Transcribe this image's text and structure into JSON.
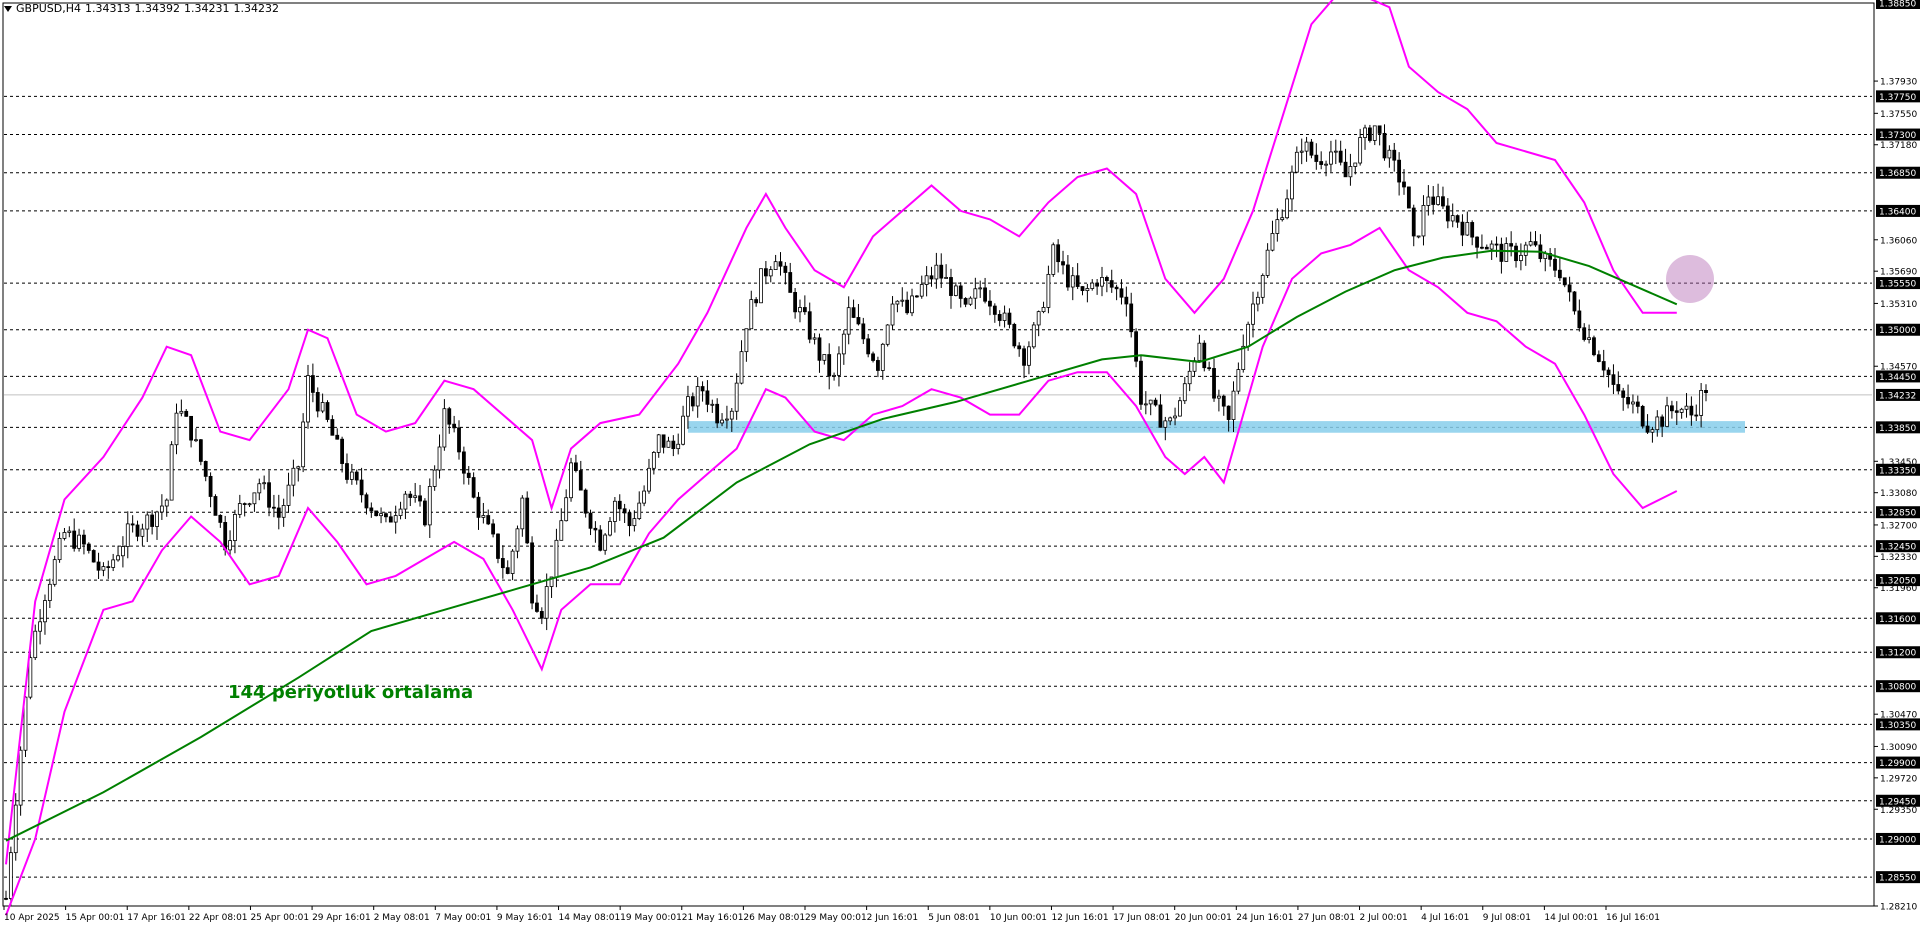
{
  "header": {
    "symbol": "GBPUSD,H4",
    "ohlc": [
      "1.34313",
      "1.34392",
      "1.34231",
      "1.34232"
    ]
  },
  "annotation": "144 periyotluk ortalama",
  "colors": {
    "candles": "#000000",
    "bollinger": "#ff00ff",
    "ma144": "#008000",
    "support_zone": "#87ceeb",
    "highlight_circle": "#b36bb3",
    "grid": "#000000"
  },
  "chart_data": {
    "type": "candlestick",
    "symbol": "GBPUSD",
    "timeframe": "H4",
    "ylim": [
      1.2821,
      1.3885
    ],
    "y_ticks": [
      "1.38850",
      "1.37930",
      "1.37750",
      "1.37550",
      "1.37300",
      "1.37180",
      "1.36850",
      "1.36400",
      "1.36060",
      "1.35690",
      "1.35550",
      "1.35310",
      "1.35000",
      "1.34570",
      "1.34450",
      "1.34232",
      "1.33850",
      "1.33450",
      "1.33350",
      "1.33080",
      "1.32850",
      "1.32700",
      "1.32450",
      "1.32330",
      "1.32050",
      "1.31960",
      "1.31600",
      "1.31200",
      "1.30800",
      "1.30470",
      "1.30350",
      "1.30090",
      "1.29900",
      "1.29720",
      "1.29450",
      "1.29350",
      "1.29000",
      "1.28550",
      "1.28210"
    ],
    "horizontal_levels": [
      1.3885,
      1.3775,
      1.373,
      1.3685,
      1.364,
      1.3555,
      1.35,
      1.3445,
      1.3385,
      1.3335,
      1.3285,
      1.3245,
      1.3205,
      1.316,
      1.312,
      1.308,
      1.3035,
      1.299,
      1.2945,
      1.29,
      1.2855
    ],
    "current_price": 1.34232,
    "support_zone": [
      1.3381,
      1.339
    ],
    "x_labels": [
      "10 Apr 2025",
      "15 Apr 00:01",
      "17 Apr 16:01",
      "22 Apr 08:01",
      "25 Apr 00:01",
      "29 Apr 16:01",
      "2 May 08:01",
      "7 May 00:01",
      "9 May 16:01",
      "14 May 08:01",
      "19 May 00:01",
      "21 May 16:01",
      "26 May 08:01",
      "29 May 00:01",
      "2 Jun 16:01",
      "5 Jun 08:01",
      "10 Jun 00:01",
      "12 Jun 16:01",
      "17 Jun 08:01",
      "20 Jun 00:01",
      "24 Jun 16:01",
      "27 Jun 08:01",
      "2 Jul 00:01",
      "4 Jul 16:01",
      "9 Jul 08:01",
      "14 Jul 00:01",
      "16 Jul 16:01"
    ],
    "price_path": [
      [
        0,
        1.283
      ],
      [
        2,
        1.295
      ],
      [
        5,
        1.312
      ],
      [
        8,
        1.319
      ],
      [
        12,
        1.326
      ],
      [
        16,
        1.3245
      ],
      [
        20,
        1.321
      ],
      [
        25,
        1.326
      ],
      [
        30,
        1.328
      ],
      [
        33,
        1.33
      ],
      [
        35,
        1.341
      ],
      [
        38,
        1.338
      ],
      [
        42,
        1.331
      ],
      [
        45,
        1.325
      ],
      [
        48,
        1.329
      ],
      [
        52,
        1.332
      ],
      [
        56,
        1.328
      ],
      [
        60,
        1.334
      ],
      [
        62,
        1.344
      ],
      [
        66,
        1.339
      ],
      [
        70,
        1.333
      ],
      [
        74,
        1.33
      ],
      [
        78,
        1.327
      ],
      [
        82,
        1.331
      ],
      [
        86,
        1.328
      ],
      [
        90,
        1.34
      ],
      [
        93,
        1.336
      ],
      [
        96,
        1.33
      ],
      [
        100,
        1.325
      ],
      [
        103,
        1.321
      ],
      [
        106,
        1.33
      ],
      [
        108,
        1.319
      ],
      [
        110,
        1.317
      ],
      [
        113,
        1.324
      ],
      [
        116,
        1.334
      ],
      [
        119,
        1.329
      ],
      [
        122,
        1.325
      ],
      [
        125,
        1.33
      ],
      [
        128,
        1.327
      ],
      [
        131,
        1.331
      ],
      [
        134,
        1.337
      ],
      [
        137,
        1.336
      ],
      [
        140,
        1.341
      ],
      [
        143,
        1.343
      ],
      [
        146,
        1.34
      ],
      [
        149,
        1.341
      ],
      [
        152,
        1.351
      ],
      [
        155,
        1.356
      ],
      [
        158,
        1.359
      ],
      [
        161,
        1.354
      ],
      [
        164,
        1.351
      ],
      [
        167,
        1.347
      ],
      [
        170,
        1.344
      ],
      [
        173,
        1.352
      ],
      [
        176,
        1.349
      ],
      [
        179,
        1.346
      ],
      [
        182,
        1.354
      ],
      [
        185,
        1.352
      ],
      [
        188,
        1.355
      ],
      [
        191,
        1.357
      ],
      [
        194,
        1.355
      ],
      [
        197,
        1.352
      ],
      [
        200,
        1.355
      ],
      [
        203,
        1.353
      ],
      [
        206,
        1.35
      ],
      [
        209,
        1.347
      ],
      [
        212,
        1.351
      ],
      [
        215,
        1.359
      ],
      [
        218,
        1.356
      ],
      [
        221,
        1.354
      ],
      [
        224,
        1.356
      ],
      [
        227,
        1.355
      ],
      [
        230,
        1.354
      ],
      [
        233,
        1.342
      ],
      [
        236,
        1.34
      ],
      [
        239,
        1.339
      ],
      [
        242,
        1.343
      ],
      [
        245,
        1.349
      ],
      [
        248,
        1.342
      ],
      [
        251,
        1.339
      ],
      [
        254,
        1.349
      ],
      [
        257,
        1.355
      ],
      [
        260,
        1.361
      ],
      [
        263,
        1.366
      ],
      [
        266,
        1.372
      ],
      [
        269,
        1.37
      ],
      [
        272,
        1.371
      ],
      [
        275,
        1.368
      ],
      [
        278,
        1.372
      ],
      [
        281,
        1.374
      ],
      [
        284,
        1.37
      ],
      [
        287,
        1.367
      ],
      [
        289,
        1.36
      ],
      [
        292,
        1.366
      ],
      [
        295,
        1.364
      ],
      [
        298,
        1.363
      ],
      [
        301,
        1.361
      ],
      [
        304,
        1.36
      ],
      [
        307,
        1.359
      ],
      [
        310,
        1.359
      ],
      [
        313,
        1.36
      ],
      [
        316,
        1.358
      ],
      [
        319,
        1.357
      ],
      [
        322,
        1.352
      ],
      [
        325,
        1.349
      ],
      [
        328,
        1.346
      ],
      [
        331,
        1.342
      ],
      [
        334,
        1.341
      ],
      [
        337,
        1.339
      ],
      [
        340,
        1.3395
      ],
      [
        343,
        1.341
      ],
      [
        346,
        1.34
      ],
      [
        349,
        1.3432
      ]
    ],
    "series": [
      {
        "name": "144 periyotluk ortalama",
        "kind": "moving_average",
        "points": [
          [
            0,
            1.2898
          ],
          [
            20,
            1.2955
          ],
          [
            40,
            1.302
          ],
          [
            60,
            1.309
          ],
          [
            75,
            1.3145
          ],
          [
            90,
            1.317
          ],
          [
            105,
            1.3195
          ],
          [
            120,
            1.322
          ],
          [
            135,
            1.3255
          ],
          [
            150,
            1.332
          ],
          [
            165,
            1.3365
          ],
          [
            180,
            1.3395
          ],
          [
            195,
            1.3415
          ],
          [
            210,
            1.344
          ],
          [
            225,
            1.3465
          ],
          [
            233,
            1.347
          ],
          [
            245,
            1.3462
          ],
          [
            255,
            1.348
          ],
          [
            265,
            1.3515
          ],
          [
            275,
            1.3545
          ],
          [
            285,
            1.357
          ],
          [
            295,
            1.3585
          ],
          [
            305,
            1.3593
          ],
          [
            315,
            1.3592
          ],
          [
            325,
            1.3575
          ],
          [
            335,
            1.355
          ],
          [
            343,
            1.353
          ]
        ]
      },
      {
        "name": "",
        "kind": "bollinger_upper",
        "points": [
          [
            0,
            1.287
          ],
          [
            6,
            1.318
          ],
          [
            12,
            1.33
          ],
          [
            20,
            1.335
          ],
          [
            28,
            1.342
          ],
          [
            33,
            1.348
          ],
          [
            38,
            1.347
          ],
          [
            44,
            1.338
          ],
          [
            50,
            1.337
          ],
          [
            58,
            1.343
          ],
          [
            62,
            1.35
          ],
          [
            66,
            1.349
          ],
          [
            72,
            1.34
          ],
          [
            78,
            1.338
          ],
          [
            84,
            1.339
          ],
          [
            90,
            1.344
          ],
          [
            96,
            1.343
          ],
          [
            102,
            1.34
          ],
          [
            108,
            1.337
          ],
          [
            112,
            1.329
          ],
          [
            116,
            1.336
          ],
          [
            122,
            1.339
          ],
          [
            130,
            1.34
          ],
          [
            138,
            1.346
          ],
          [
            144,
            1.352
          ],
          [
            148,
            1.357
          ],
          [
            152,
            1.362
          ],
          [
            156,
            1.366
          ],
          [
            160,
            1.362
          ],
          [
            166,
            1.357
          ],
          [
            172,
            1.355
          ],
          [
            178,
            1.361
          ],
          [
            184,
            1.364
          ],
          [
            190,
            1.367
          ],
          [
            196,
            1.364
          ],
          [
            202,
            1.363
          ],
          [
            208,
            1.361
          ],
          [
            214,
            1.365
          ],
          [
            220,
            1.368
          ],
          [
            226,
            1.369
          ],
          [
            232,
            1.366
          ],
          [
            238,
            1.356
          ],
          [
            244,
            1.352
          ],
          [
            250,
            1.356
          ],
          [
            256,
            1.364
          ],
          [
            262,
            1.375
          ],
          [
            268,
            1.386
          ],
          [
            274,
            1.39
          ],
          [
            280,
            1.389
          ],
          [
            284,
            1.388
          ],
          [
            288,
            1.381
          ],
          [
            294,
            1.378
          ],
          [
            300,
            1.376
          ],
          [
            306,
            1.372
          ],
          [
            312,
            1.371
          ],
          [
            318,
            1.37
          ],
          [
            324,
            1.365
          ],
          [
            330,
            1.357
          ],
          [
            336,
            1.352
          ],
          [
            343,
            1.352
          ]
        ]
      },
      {
        "name": "",
        "kind": "bollinger_lower",
        "points": [
          [
            0,
            1.281
          ],
          [
            6,
            1.29
          ],
          [
            12,
            1.305
          ],
          [
            20,
            1.317
          ],
          [
            26,
            1.318
          ],
          [
            32,
            1.324
          ],
          [
            38,
            1.328
          ],
          [
            44,
            1.325
          ],
          [
            50,
            1.32
          ],
          [
            56,
            1.321
          ],
          [
            62,
            1.329
          ],
          [
            68,
            1.325
          ],
          [
            74,
            1.32
          ],
          [
            80,
            1.321
          ],
          [
            86,
            1.323
          ],
          [
            92,
            1.325
          ],
          [
            98,
            1.323
          ],
          [
            104,
            1.317
          ],
          [
            110,
            1.31
          ],
          [
            114,
            1.317
          ],
          [
            120,
            1.32
          ],
          [
            126,
            1.32
          ],
          [
            132,
            1.326
          ],
          [
            138,
            1.33
          ],
          [
            144,
            1.333
          ],
          [
            150,
            1.336
          ],
          [
            156,
            1.343
          ],
          [
            160,
            1.342
          ],
          [
            166,
            1.338
          ],
          [
            172,
            1.337
          ],
          [
            178,
            1.34
          ],
          [
            184,
            1.341
          ],
          [
            190,
            1.343
          ],
          [
            196,
            1.342
          ],
          [
            202,
            1.34
          ],
          [
            208,
            1.34
          ],
          [
            214,
            1.344
          ],
          [
            220,
            1.345
          ],
          [
            226,
            1.345
          ],
          [
            232,
            1.341
          ],
          [
            238,
            1.335
          ],
          [
            242,
            1.333
          ],
          [
            246,
            1.335
          ],
          [
            250,
            1.332
          ],
          [
            254,
            1.34
          ],
          [
            258,
            1.348
          ],
          [
            264,
            1.356
          ],
          [
            270,
            1.359
          ],
          [
            276,
            1.36
          ],
          [
            282,
            1.362
          ],
          [
            288,
            1.357
          ],
          [
            294,
            1.355
          ],
          [
            300,
            1.352
          ],
          [
            306,
            1.351
          ],
          [
            312,
            1.348
          ],
          [
            318,
            1.346
          ],
          [
            324,
            1.34
          ],
          [
            330,
            1.333
          ],
          [
            336,
            1.329
          ],
          [
            343,
            1.331
          ]
        ]
      }
    ]
  }
}
